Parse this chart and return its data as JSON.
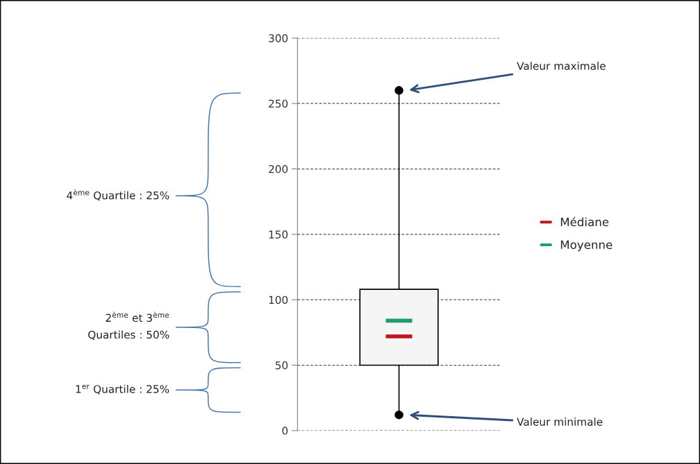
{
  "chart_data": {
    "type": "box",
    "categories": [
      null
    ],
    "boxes": [
      {
        "low": 12,
        "q1": 50,
        "median": 72,
        "q3": 108,
        "high": 260,
        "mean": 84
      }
    ],
    "series": [
      {
        "name": "Médiane",
        "color": "#c0161d",
        "values": [
          null
        ]
      },
      {
        "name": "Moyenne",
        "color": "#1e9e6e",
        "values": [
          null
        ]
      },
      {
        "type": "scatter",
        "color": "#000000",
        "values": [
          260
        ]
      },
      {
        "type": "scatter",
        "color": "#000000",
        "values": [
          12
        ]
      }
    ],
    "marker": "circle",
    "ylim": [
      0,
      300
    ],
    "yticks": [
      0,
      50,
      100,
      150,
      200,
      250,
      300
    ],
    "grid": "y",
    "legend": "right",
    "line_style": "dashed",
    "annotations": [
      "4$^{ème}$ Quartile : 25%",
      "2$^{ème}$ et 3$^{ème}$\nQuartiles : 50%",
      "1$^{er}$ Quartile : 25%",
      "Valeur maximale",
      "Valeur minimale"
    ]
  }
}
